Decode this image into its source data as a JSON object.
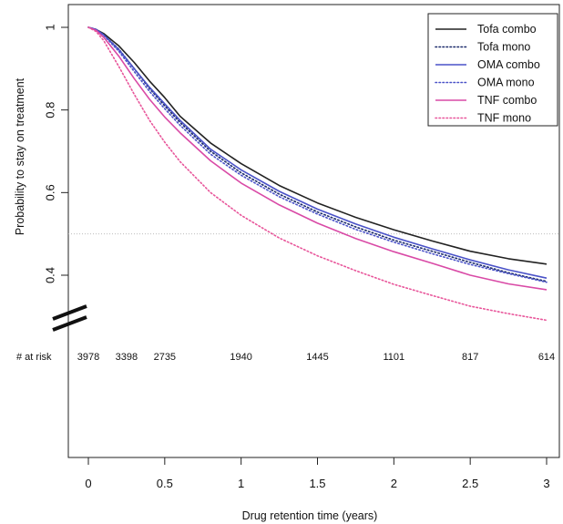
{
  "chart_data": {
    "type": "line",
    "title": "",
    "xlabel": "Drug retention time (years)",
    "ylabel": "Probability to stay on treatment",
    "xlim": [
      0,
      3
    ],
    "ylim": [
      0.4,
      1
    ],
    "x_ticks": [
      0,
      0.5,
      1,
      1.5,
      2,
      2.5,
      3
    ],
    "x_tick_labels": [
      "0",
      "0.5",
      "1",
      "1.5",
      "2",
      "2.5",
      "3"
    ],
    "y_ticks": [
      0.4,
      0.6,
      0.8,
      1
    ],
    "y_tick_labels": [
      "0.4",
      "0.6",
      "0.8",
      "1"
    ],
    "reference_line": 0.5,
    "legend_position": "top-right",
    "series": [
      {
        "name": "Tofa combo",
        "color": "#222222",
        "dash": "solid",
        "x": [
          0,
          0.05,
          0.1,
          0.2,
          0.3,
          0.4,
          0.5,
          0.6,
          0.8,
          1.0,
          1.25,
          1.5,
          1.75,
          2.0,
          2.25,
          2.5,
          2.75,
          3.0
        ],
        "y": [
          1.0,
          0.995,
          0.985,
          0.955,
          0.915,
          0.87,
          0.83,
          0.785,
          0.72,
          0.67,
          0.617,
          0.575,
          0.54,
          0.51,
          0.483,
          0.458,
          0.44,
          0.427
        ]
      },
      {
        "name": "Tofa mono",
        "color": "#1a2a6a",
        "dash": "dotted",
        "x": [
          0,
          0.05,
          0.1,
          0.2,
          0.3,
          0.4,
          0.5,
          0.6,
          0.8,
          1.0,
          1.25,
          1.5,
          1.75,
          2.0,
          2.25,
          2.5,
          2.75,
          3.0
        ],
        "y": [
          1.0,
          0.995,
          0.982,
          0.947,
          0.9,
          0.852,
          0.81,
          0.77,
          0.7,
          0.648,
          0.596,
          0.553,
          0.517,
          0.485,
          0.458,
          0.431,
          0.406,
          0.385
        ]
      },
      {
        "name": "OMA combo",
        "color": "#4a52c8",
        "dash": "solid",
        "x": [
          0,
          0.05,
          0.1,
          0.2,
          0.3,
          0.4,
          0.5,
          0.6,
          0.8,
          1.0,
          1.25,
          1.5,
          1.75,
          2.0,
          2.25,
          2.5,
          2.75,
          3.0
        ],
        "y": [
          1.0,
          0.995,
          0.982,
          0.946,
          0.9,
          0.855,
          0.815,
          0.775,
          0.705,
          0.655,
          0.603,
          0.56,
          0.524,
          0.492,
          0.464,
          0.437,
          0.413,
          0.393
        ]
      },
      {
        "name": "OMA mono",
        "color": "#4a52c8",
        "dash": "dotted",
        "x": [
          0,
          0.05,
          0.1,
          0.2,
          0.3,
          0.4,
          0.5,
          0.6,
          0.8,
          1.0,
          1.25,
          1.5,
          1.75,
          2.0,
          2.25,
          2.5,
          2.75,
          3.0
        ],
        "y": [
          1.0,
          0.995,
          0.981,
          0.942,
          0.893,
          0.845,
          0.803,
          0.763,
          0.693,
          0.642,
          0.59,
          0.548,
          0.511,
          0.48,
          0.452,
          0.426,
          0.404,
          0.383
        ]
      },
      {
        "name": "TNF combo",
        "color": "#d94aa6",
        "dash": "solid",
        "x": [
          0,
          0.05,
          0.1,
          0.2,
          0.3,
          0.4,
          0.5,
          0.6,
          0.8,
          1.0,
          1.25,
          1.5,
          1.75,
          2.0,
          2.25,
          2.5,
          2.75,
          3.0
        ],
        "y": [
          1.0,
          0.993,
          0.976,
          0.93,
          0.876,
          0.826,
          0.783,
          0.745,
          0.677,
          0.623,
          0.57,
          0.526,
          0.489,
          0.457,
          0.429,
          0.4,
          0.379,
          0.365
        ]
      },
      {
        "name": "TNF mono",
        "color": "#e8559a",
        "dash": "dotted",
        "x": [
          0,
          0.05,
          0.1,
          0.2,
          0.3,
          0.4,
          0.5,
          0.6,
          0.8,
          1.0,
          1.25,
          1.5,
          1.75,
          2.0,
          2.25,
          2.5,
          2.75,
          3.0
        ],
        "y": [
          1.0,
          0.99,
          0.968,
          0.905,
          0.838,
          0.775,
          0.722,
          0.675,
          0.6,
          0.545,
          0.49,
          0.447,
          0.411,
          0.378,
          0.351,
          0.325,
          0.307,
          0.291
        ]
      }
    ],
    "at_risk": {
      "label": "# at risk",
      "x": [
        0,
        0.25,
        0.5,
        1,
        1.5,
        2,
        2.5,
        3
      ],
      "values": [
        "3978",
        "3398",
        "2735",
        "1940",
        "1445",
        "1101",
        "817",
        "614"
      ]
    }
  }
}
